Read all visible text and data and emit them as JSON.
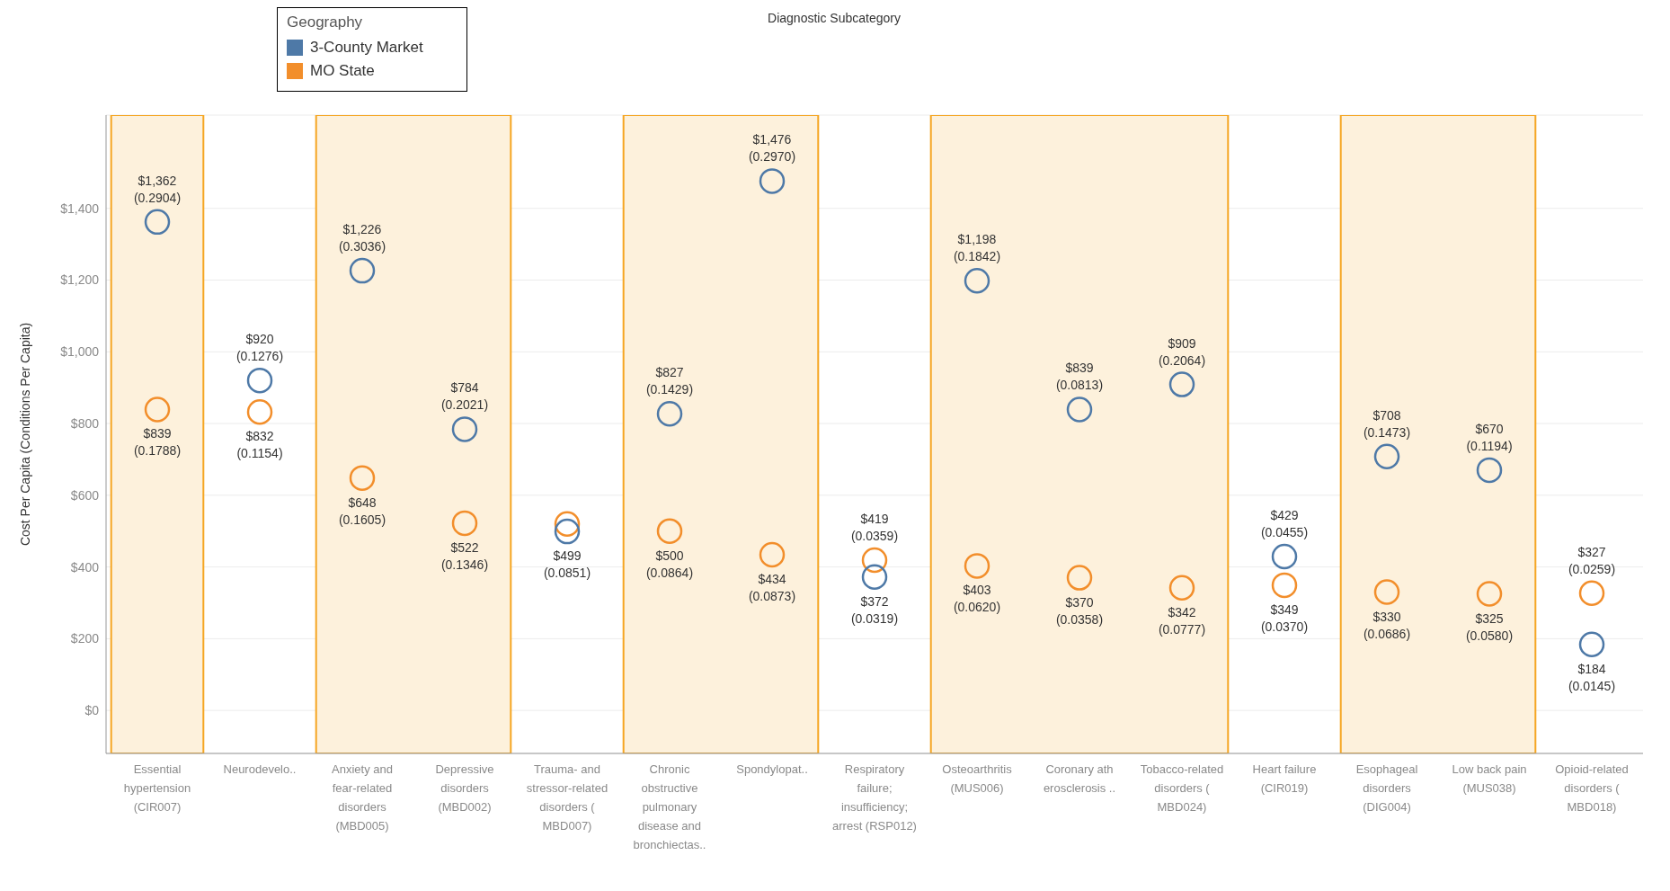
{
  "chart_data": {
    "type": "scatter",
    "annotations": [
      "Diagnostic Subcategory"
    ],
    "ylabel": "Cost Per Capita (Conditions Per Capita)",
    "legend_title": "Geography",
    "legend": "top left",
    "marker": "circle",
    "grid": "y",
    "categories": [
      "Essential hypertension (CIR007)",
      "Neurodevelo..",
      "Anxiety and fear-related disorders (MBD005)",
      "Depressive disorders (MBD002)",
      "Trauma- and stressor-related disorders ( MBD007)",
      "Chronic obstructive pulmonary disease and bronchiectas..",
      "Spondylopat..",
      "Respiratory failure; insufficiency; arrest (RSP012)",
      "Osteoarthritis (MUS006)",
      "Coronary ath erosclerosis ..",
      "Tobacco-related disorders ( MBD024)",
      "Heart failure (CIR019)",
      "Esophageal disorders (DIG004)",
      "Low back pain (MUS038)",
      "Opioid-related disorders ( MBD018)"
    ],
    "series": [
      {
        "name": "3-County Market",
        "color": "#4e79a7",
        "values": [
          1362,
          920,
          1226,
          784,
          499,
          827,
          1476,
          372,
          1198,
          839,
          909,
          429,
          708,
          670,
          184
        ],
        "value_labels": [
          "$1,362\n(0.2904)",
          "$920\n(0.1276)",
          "$1,226\n(0.3036)",
          "$784\n(0.2021)",
          "$499\n(0.0851)",
          "$827\n(0.1429)",
          "$1,476\n(0.2970)",
          "$372\n(0.0319)",
          "$1,198\n(0.1842)",
          "$839\n(0.0813)",
          "$909\n(0.2064)",
          "$429\n(0.0455)",
          "$708\n(0.1473)",
          "$670\n(0.1194)",
          "$184\n(0.0145)"
        ]
      },
      {
        "name": "MO State",
        "color": "#f28e2b",
        "values": [
          839,
          832,
          648,
          522,
          520,
          500,
          434,
          419,
          403,
          370,
          342,
          349,
          330,
          325,
          327
        ],
        "value_labels": [
          "$839\n(0.1788)",
          "$832\n(0.1154)",
          "$648\n(0.1605)",
          "$522\n(0.1346)",
          null,
          "$500\n(0.0864)",
          "$434\n(0.0873)",
          "$419\n(0.0359)",
          "$403\n(0.0620)",
          "$370\n(0.0358)",
          "$342\n(0.0777)",
          "$349\n(0.0370)",
          "$330\n(0.0686)",
          "$325\n(0.0580)",
          "$327\n(0.0259)"
        ]
      }
    ],
    "bands": [
      {
        "axis": "x",
        "from": "Essential hypertension (CIR007)",
        "to": "Essential hypertension (CIR007)",
        "color": "#fdf1dc"
      },
      {
        "axis": "x",
        "from": "Anxiety and fear-related disorders (MBD005)",
        "to": "Depressive disorders (MBD002)",
        "color": "#fdf1dc"
      },
      {
        "axis": "x",
        "from": "Chronic obstructive pulmonary disease and bronchiectas..",
        "to": "Spondylopat..",
        "color": "#fdf1dc"
      },
      {
        "axis": "x",
        "from": "Osteoarthritis (MUS006)",
        "to": "Tobacco-related disorders ( MBD024)",
        "color": "#fdf1dc"
      },
      {
        "axis": "x",
        "from": "Esophageal disorders (DIG004)",
        "to": "Low back pain (MUS038)",
        "color": "#fdf1dc"
      }
    ],
    "ylim": [
      -120,
      1660
    ],
    "yticks": [
      {
        "value": 0,
        "label": "$0"
      },
      {
        "value": 200,
        "label": "$200"
      },
      {
        "value": 400,
        "label": "$400"
      },
      {
        "value": 600,
        "label": "$600"
      },
      {
        "value": 800,
        "label": "$800"
      },
      {
        "value": 1000,
        "label": "$1,000"
      },
      {
        "value": 1200,
        "label": "$1,200"
      },
      {
        "value": 1400,
        "label": "$1,400"
      }
    ]
  }
}
